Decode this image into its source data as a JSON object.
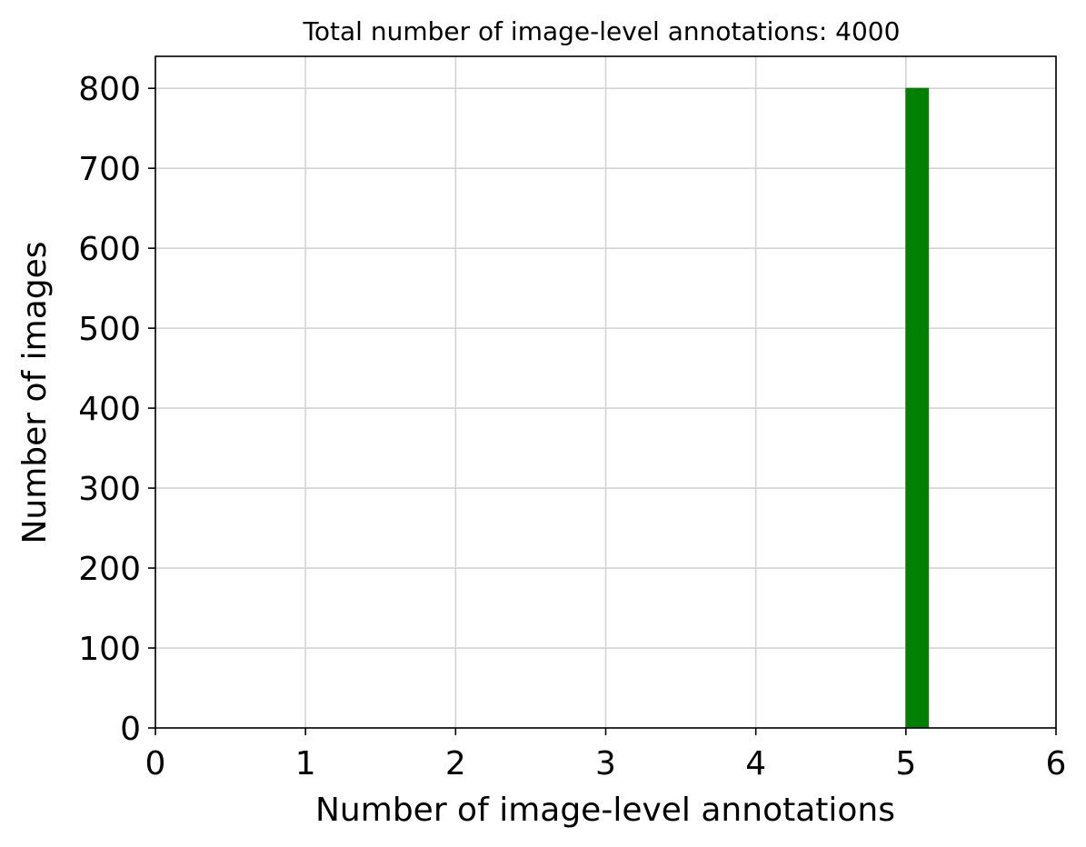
{
  "chart_data": {
    "type": "bar",
    "title": "Total number of image-level annotations: 4000",
    "xlabel": "Number of image-level annotations",
    "ylabel": "Number of images",
    "xlim": [
      0,
      6
    ],
    "ylim": [
      0,
      840
    ],
    "xticks": [
      "0",
      "1",
      "2",
      "3",
      "4",
      "5",
      "6"
    ],
    "yticks": [
      "0",
      "100",
      "200",
      "300",
      "400",
      "500",
      "600",
      "700",
      "800"
    ],
    "grid": true,
    "bars": [
      {
        "x_start": 5.0,
        "x_end": 5.15,
        "value": 800
      }
    ],
    "bar_color": "#008000",
    "grid_color": "#d3d3d3"
  }
}
